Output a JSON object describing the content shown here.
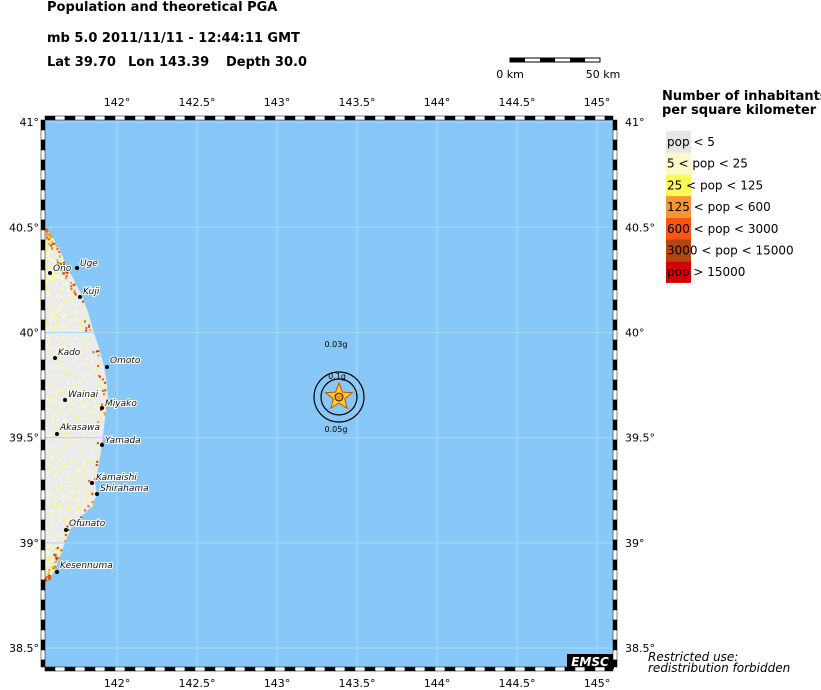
{
  "header": {
    "title": "Population and theoretical PGA",
    "event": "mb 5.0  2011/11/11 - 12:44:11 GMT",
    "lat": "Lat 39.70",
    "lon": "Lon 143.39",
    "depth": "Depth  30.0"
  },
  "scale_bar": {
    "start": "0 km",
    "end": "50 km"
  },
  "legend": {
    "title": [
      "Number of inhabitants",
      "per square kilometer"
    ],
    "items": [
      {
        "label": "pop < 5",
        "color": "#e6e6e6"
      },
      {
        "label": "5 < pop < 25",
        "color": "#fafac8"
      },
      {
        "label": "25 < pop < 125",
        "color": "#fafa5a"
      },
      {
        "label": "125 < pop < 600",
        "color": "#fa9632"
      },
      {
        "label": "600 < pop < 3000",
        "color": "#fa5514"
      },
      {
        "label": "3000 < pop < 15000",
        "color": "#b4460f"
      },
      {
        "label": "pop > 15000",
        "color": "#d20000"
      }
    ]
  },
  "map": {
    "xlim": [
      141.55,
      145.1
    ],
    "ylim": [
      38.41,
      41.01
    ],
    "xticks": [
      {
        "value": 142,
        "label": "142°"
      },
      {
        "value": 142.5,
        "label": "142.5°"
      },
      {
        "value": 143,
        "label": "143°"
      },
      {
        "value": 143.5,
        "label": "143.5°"
      },
      {
        "value": 144,
        "label": "144°"
      },
      {
        "value": 144.5,
        "label": "144.5°"
      },
      {
        "value": 145,
        "label": "145°"
      }
    ],
    "yticks": [
      {
        "value": 41,
        "label": "41°"
      },
      {
        "value": 40.5,
        "label": "40.5°"
      },
      {
        "value": 40,
        "label": "40°"
      },
      {
        "value": 39.5,
        "label": "39.5°"
      },
      {
        "value": 39,
        "label": "39°"
      },
      {
        "value": 38.5,
        "label": "38.5°"
      }
    ],
    "sea_color": "#87c8f8",
    "cities": [
      "Ono",
      "Uge",
      "Kuji",
      "Kado",
      "Omoto",
      "Wainai",
      "Miyako",
      "Akasawa",
      "Yamada",
      "Kamaishi",
      "Shirahama",
      "Ofunato",
      "Kesennuma"
    ],
    "pga_labels": [
      "0.03g",
      "0.1g",
      "0.05g"
    ]
  },
  "footer": {
    "logo": "EMSC",
    "notice": [
      "Restricted use:",
      "redistribution forbidden"
    ]
  }
}
